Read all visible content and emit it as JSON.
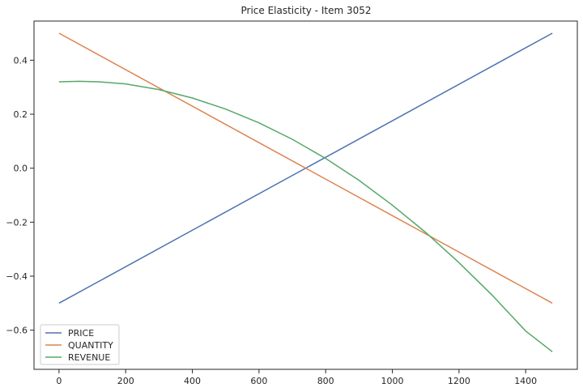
{
  "chart_data": {
    "type": "line",
    "title": "Price Elasticity - Item 3052",
    "xlabel": "",
    "ylabel": "",
    "xlim": [
      -75,
      1555
    ],
    "ylim": [
      -0.745,
      0.545
    ],
    "x_ticks": [
      0,
      200,
      400,
      600,
      800,
      1000,
      1200,
      1400
    ],
    "y_ticks": [
      -0.6,
      -0.4,
      -0.2,
      0.0,
      0.2,
      0.4
    ],
    "x_tick_labels": [
      "0",
      "200",
      "400",
      "600",
      "800",
      "1000",
      "1200",
      "1400"
    ],
    "y_tick_labels": [
      "−0.6",
      "−0.4",
      "−0.2",
      "0.0",
      "0.2",
      "0.4"
    ],
    "grid": false,
    "legend_position": "lower-left",
    "series": [
      {
        "name": "PRICE",
        "color": "#4c72b0",
        "x": [
          0,
          1480
        ],
        "y": [
          -0.5,
          0.5
        ]
      },
      {
        "name": "QUANTITY",
        "color": "#dd8452",
        "x": [
          0,
          1480
        ],
        "y": [
          0.5,
          -0.5
        ]
      },
      {
        "name": "REVENUE",
        "color": "#55a868",
        "x": [
          0,
          60,
          120,
          200,
          300,
          400,
          500,
          600,
          700,
          800,
          900,
          1000,
          1100,
          1200,
          1300,
          1400,
          1480
        ],
        "y": [
          0.32,
          0.322,
          0.32,
          0.312,
          0.291,
          0.26,
          0.219,
          0.168,
          0.107,
          0.036,
          -0.045,
          -0.137,
          -0.238,
          -0.35,
          -0.471,
          -0.603,
          -0.68
        ]
      }
    ]
  }
}
